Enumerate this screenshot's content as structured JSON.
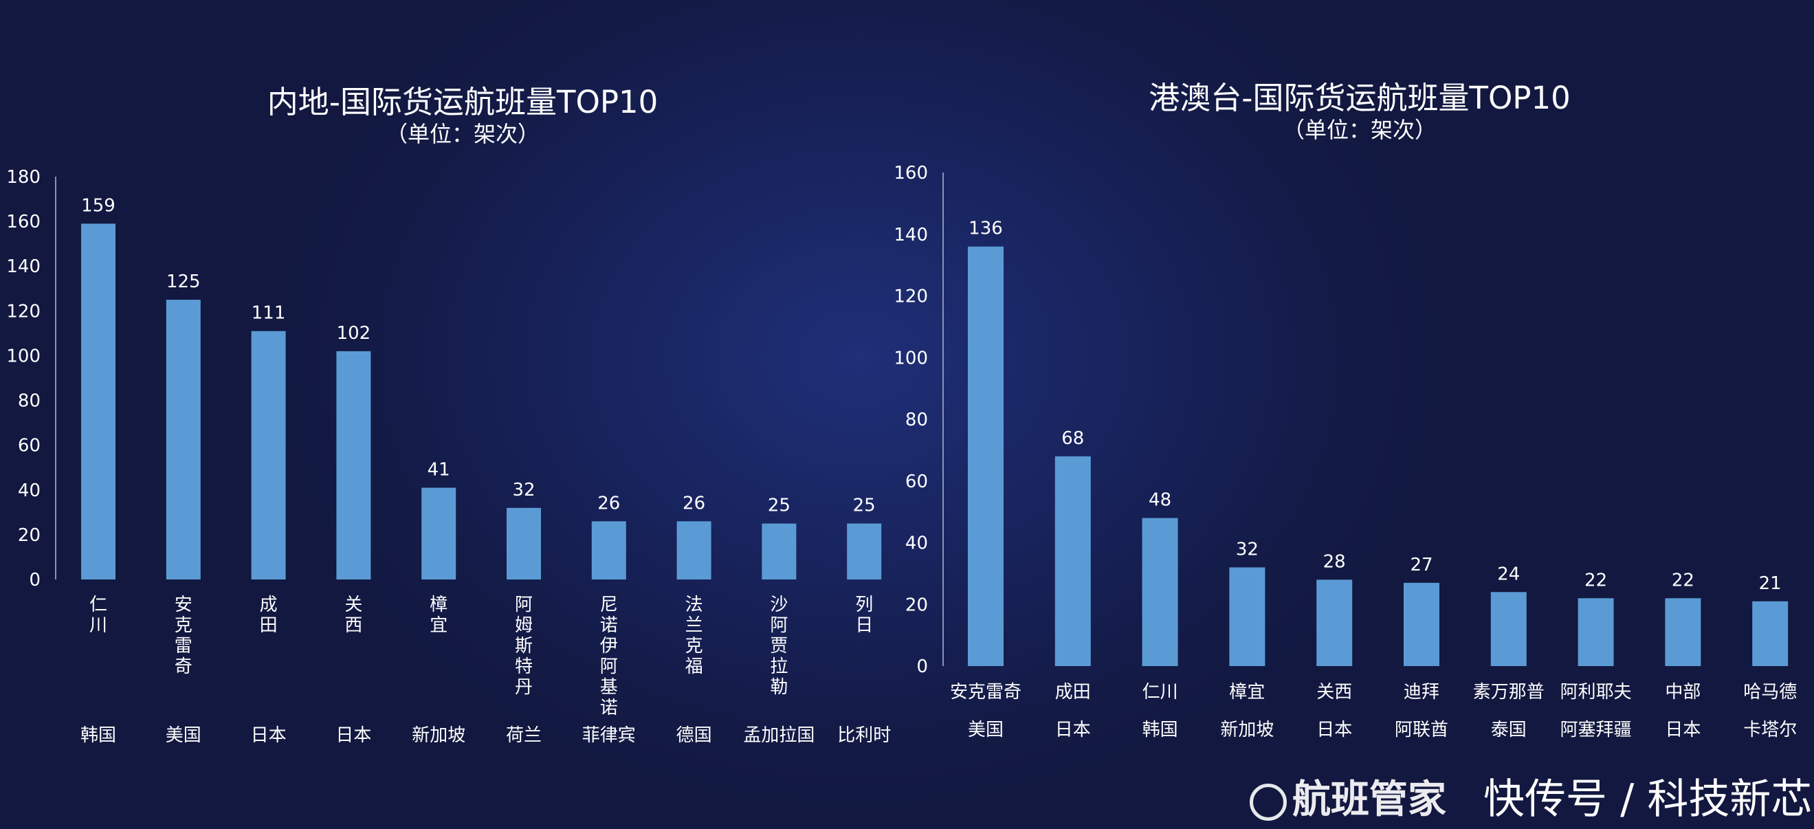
{
  "colors": {
    "bar": "#5b9bd5",
    "background": "#141a45",
    "axis": "#8a93b8"
  },
  "chart_data": [
    {
      "type": "bar",
      "title": "内地-国际货运航班量TOP10",
      "subtitle": "（单位：架次）",
      "categories": [
        "仁川",
        "安克雷奇",
        "成田",
        "关西",
        "樟宜",
        "阿姆斯特丹",
        "尼诺伊阿基诺",
        "法兰克福",
        "沙阿贾拉勒",
        "列日"
      ],
      "countries": [
        "韩国",
        "美国",
        "日本",
        "日本",
        "新加坡",
        "荷兰",
        "菲律宾",
        "德国",
        "孟加拉国",
        "比利时"
      ],
      "values": [
        159,
        125,
        111,
        102,
        41,
        32,
        26,
        26,
        25,
        25
      ],
      "ylim": [
        0,
        180
      ],
      "yticks": [
        0,
        20,
        40,
        60,
        80,
        100,
        120,
        140,
        160,
        180
      ],
      "grid": false
    },
    {
      "type": "bar",
      "title": "港澳台-国际货运航班量TOP10",
      "subtitle": "（单位：架次）",
      "categories": [
        "安克雷奇",
        "成田",
        "仁川",
        "樟宜",
        "关西",
        "迪拜",
        "素万那普",
        "阿利耶夫",
        "中部",
        "哈马德"
      ],
      "countries": [
        "美国",
        "日本",
        "韩国",
        "新加坡",
        "日本",
        "阿联酋",
        "泰国",
        "阿塞拜疆",
        "日本",
        "卡塔尔"
      ],
      "values": [
        136,
        68,
        48,
        32,
        28,
        27,
        24,
        22,
        22,
        21
      ],
      "ylim": [
        0,
        160
      ],
      "yticks": [
        0,
        20,
        40,
        60,
        80,
        100,
        120,
        140,
        160
      ],
      "grid": false
    }
  ],
  "watermark": {
    "logo_text": "航班管家",
    "source": "快传号 / 科技新芯"
  }
}
